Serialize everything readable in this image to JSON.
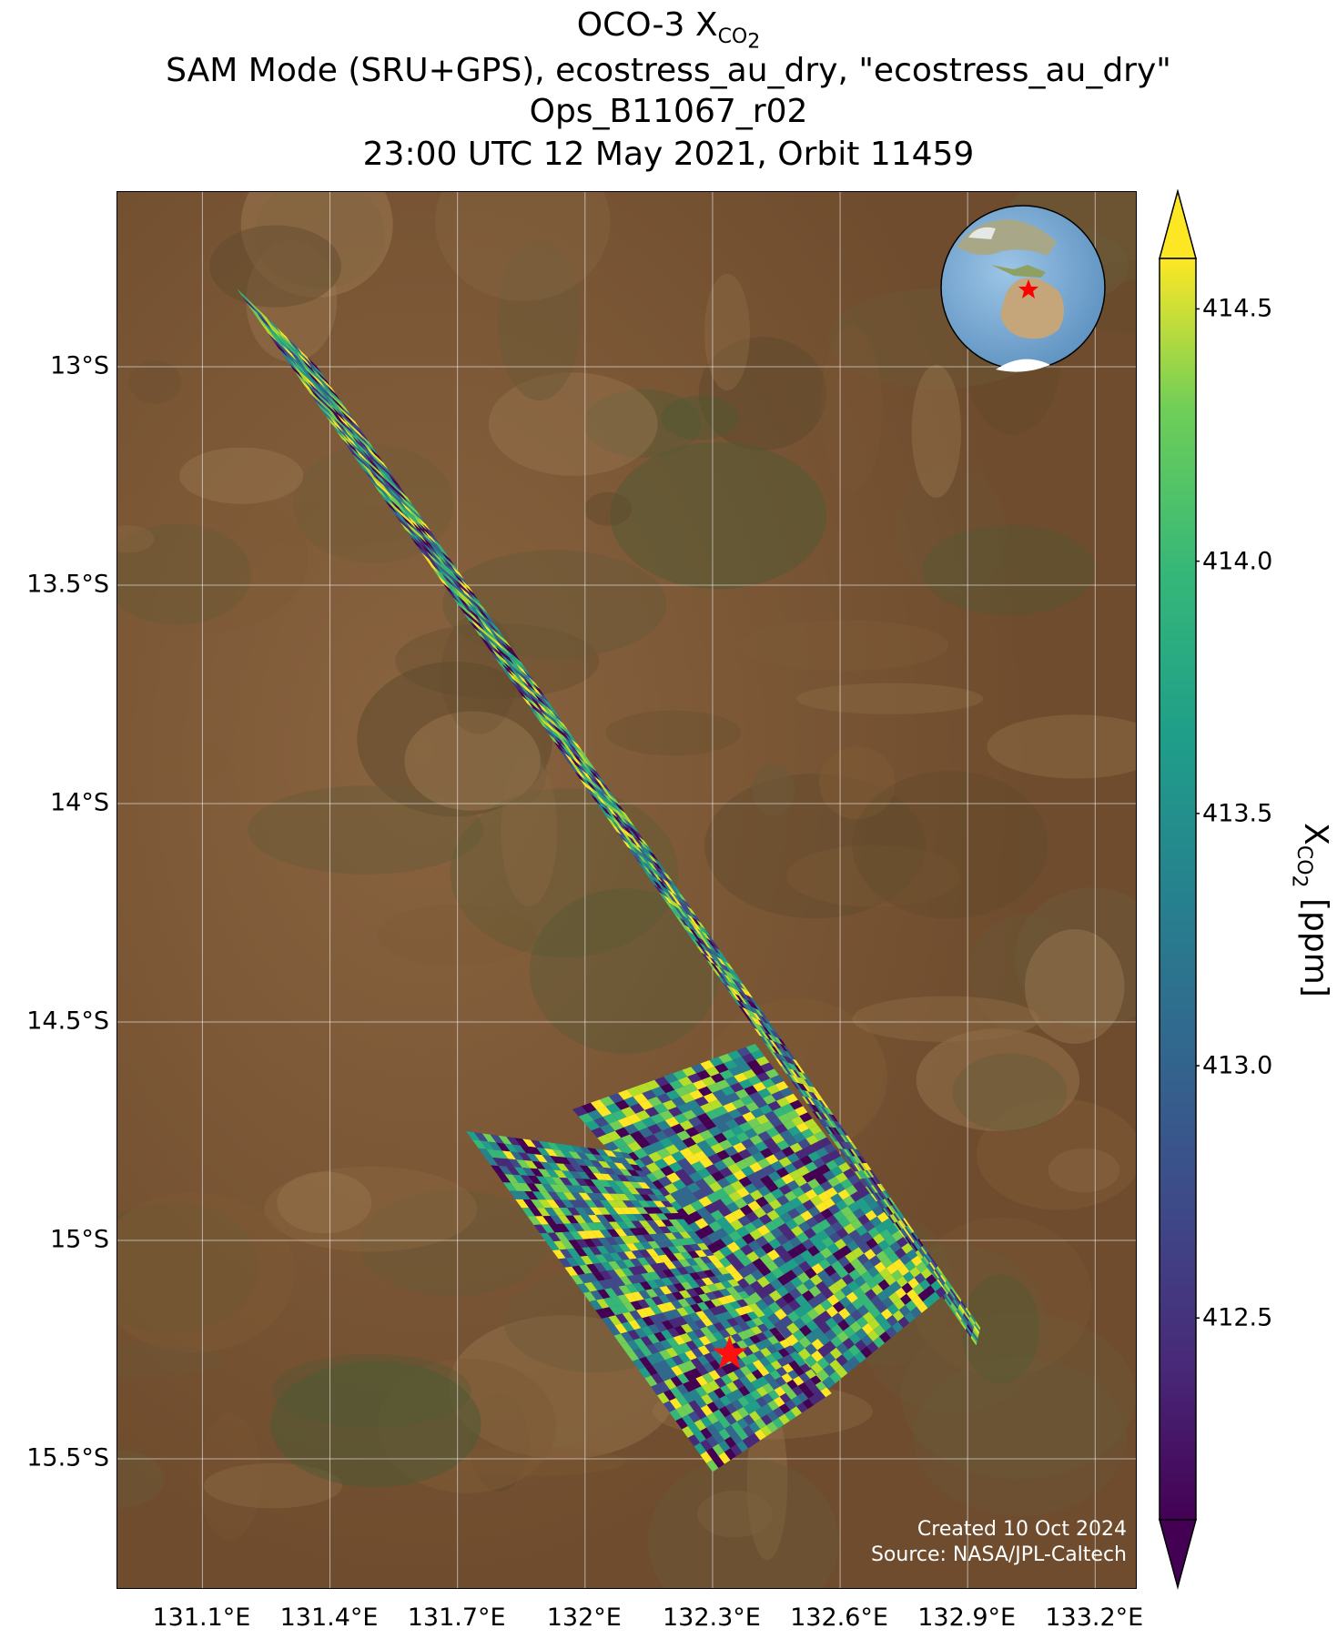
{
  "title": {
    "line1_main": "OCO-3 X",
    "line1_sub": "CO",
    "line1_sub2": "2",
    "line2": "SAM Mode (SRU+GPS), ecostress_au_dry, \"ecostress_au_dry\"",
    "line3": "Ops_B11067_r02",
    "line4": "23:00 UTC 12 May 2021, Orbit 11459"
  },
  "map": {
    "lon_range": [
      130.9,
      133.3
    ],
    "lat_range": [
      -15.8,
      -12.6
    ],
    "x_ticks": [
      {
        "value": 131.1,
        "label": "131.1°E"
      },
      {
        "value": 131.4,
        "label": "131.4°E"
      },
      {
        "value": 131.7,
        "label": "131.7°E"
      },
      {
        "value": 132.0,
        "label": "132°E"
      },
      {
        "value": 132.3,
        "label": "132.3°E"
      },
      {
        "value": 132.6,
        "label": "132.6°E"
      },
      {
        "value": 132.9,
        "label": "132.9°E"
      },
      {
        "value": 133.2,
        "label": "133.2°E"
      }
    ],
    "y_ticks": [
      {
        "value": -13.0,
        "label": "13°S"
      },
      {
        "value": -13.5,
        "label": "13.5°S"
      },
      {
        "value": -14.0,
        "label": "14°S"
      },
      {
        "value": -14.5,
        "label": "14.5°S"
      },
      {
        "value": -15.0,
        "label": "15°S"
      },
      {
        "value": -15.5,
        "label": "15.5°S"
      }
    ],
    "gridlines": true,
    "target": {
      "lon": 132.34,
      "lat": -15.26,
      "marker": "red-star"
    },
    "credit_line1": "Created 10 Oct 2024",
    "credit_line2": "Source: NASA/JPL-Caltech",
    "inset": "globe-australia-with-red-star"
  },
  "colorbar": {
    "colormap": "viridis",
    "min": 412.1,
    "max": 414.6,
    "extend": "both",
    "ticks": [
      {
        "value": 414.5,
        "label": "414.5"
      },
      {
        "value": 414.0,
        "label": "414.0"
      },
      {
        "value": 413.5,
        "label": "413.5"
      },
      {
        "value": 413.0,
        "label": "413.0"
      },
      {
        "value": 412.5,
        "label": "412.5"
      }
    ],
    "label_main": "X",
    "label_sub": "CO",
    "label_sub2": "2",
    "label_unit": " [ppm]"
  },
  "chart_data": {
    "type": "heatmap",
    "description_variable": "XCO2",
    "value_range": [
      412.1,
      414.6
    ],
    "swaths": [
      {
        "corners": [
          [
            131.18,
            -12.82
          ],
          [
            131.37,
            -13.0
          ],
          [
            132.93,
            -15.2
          ],
          [
            132.92,
            -15.24
          ]
        ]
      },
      {
        "corners": [
          [
            131.97,
            -14.7
          ],
          [
            132.4,
            -14.55
          ],
          [
            132.85,
            -15.12
          ],
          [
            132.56,
            -15.35
          ]
        ]
      },
      {
        "corners": [
          [
            131.72,
            -14.75
          ],
          [
            132.1,
            -14.8
          ],
          [
            132.58,
            -15.35
          ],
          [
            132.3,
            -15.53
          ]
        ]
      }
    ]
  }
}
